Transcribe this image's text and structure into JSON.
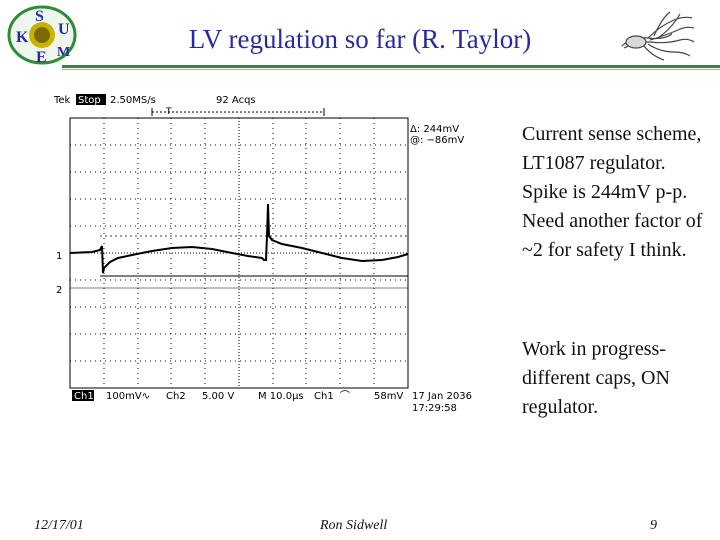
{
  "slide": {
    "title": "LV regulation so far (R. Taylor)",
    "bullets": [
      "Current sense scheme, LT1087 regulator. Spike is 244mV p-p. Need another factor of ~2 for safety I think.",
      "Work in progress- different caps, ON regulator."
    ]
  },
  "logo": {
    "letters": [
      "K",
      "S",
      "U",
      "E",
      "M"
    ],
    "colors": {
      "ring": "#2e8b3a",
      "sun": "#c8b400",
      "letters": "#2a2aa0"
    }
  },
  "scope": {
    "brand": "Tek",
    "state": "Stop",
    "sample_rate": "2.50MS/s",
    "acquisitions": "92 Acqs",
    "trigger_marker": "T",
    "delta_readout": "Δ: 244mV",
    "at_readout": "@: −86mV",
    "ch1_marker": "1",
    "ch2_marker": "2",
    "ch1_label": "Ch1",
    "ch1_scale": "100mV∿",
    "ch2_label": "Ch2",
    "ch2_scale": "5.00 V",
    "timebase": "M 10.0µs",
    "trigger_ch": "Ch1",
    "trigger_slope": "⌒",
    "trigger_level": "58mV",
    "date": "17 Jan 2036",
    "time": "17:29:58"
  },
  "footer": {
    "date": "12/17/01",
    "author": "Ron Sidwell",
    "page": "9"
  }
}
